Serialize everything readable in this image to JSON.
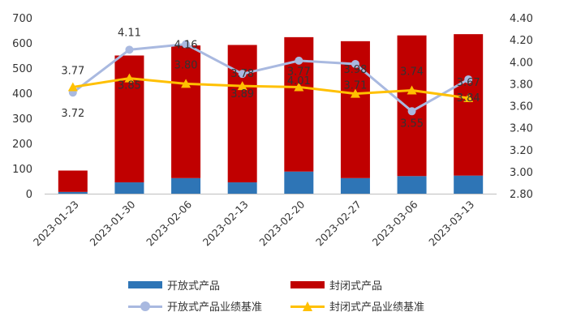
{
  "chart_data": {
    "type": "bar+line",
    "categories": [
      "2023-01-23",
      "2023-01-30",
      "2023-02-06",
      "2023-02-13",
      "2023-02-20",
      "2023-02-27",
      "2023-03-06",
      "2023-03-13"
    ],
    "bar_series": [
      {
        "name": "开放式产品",
        "color": "#2e75b6",
        "values": [
          7,
          45,
          62,
          45,
          88,
          62,
          70,
          72
        ]
      },
      {
        "name": "封闭式产品",
        "color": "#c00000",
        "values": [
          85,
          505,
          528,
          547,
          535,
          545,
          560,
          563
        ]
      }
    ],
    "line_series": [
      {
        "name": "开放式产品业绩基准",
        "color": "#a9b9e0",
        "marker": "circle",
        "values": [
          3.72,
          4.11,
          4.16,
          3.89,
          4.01,
          3.98,
          3.55,
          3.84
        ],
        "labels": [
          "3.72",
          "4.11",
          "4.16",
          "3.89",
          "4.01",
          "3.98",
          "3.55",
          "3.84"
        ]
      },
      {
        "name": "封闭式产品业绩基准",
        "color": "#ffc000",
        "marker": "triangle",
        "values": [
          3.77,
          3.85,
          3.8,
          3.78,
          3.77,
          3.71,
          3.74,
          3.67
        ],
        "labels": [
          "3.77",
          "3.85",
          "3.80",
          "3.78",
          "3.77",
          "3.71",
          "3.74",
          "3.67"
        ]
      }
    ],
    "y_left": {
      "min": 0,
      "max": 700,
      "ticks": [
        "0",
        "100",
        "200",
        "300",
        "400",
        "500",
        "600",
        "700"
      ]
    },
    "y_right": {
      "min": 2.8,
      "max": 4.4,
      "ticks": [
        "2.80",
        "3.00",
        "3.20",
        "3.40",
        "3.60",
        "3.80",
        "4.00",
        "4.20",
        "4.40"
      ]
    },
    "grid": false,
    "legend_position": "bottom"
  }
}
